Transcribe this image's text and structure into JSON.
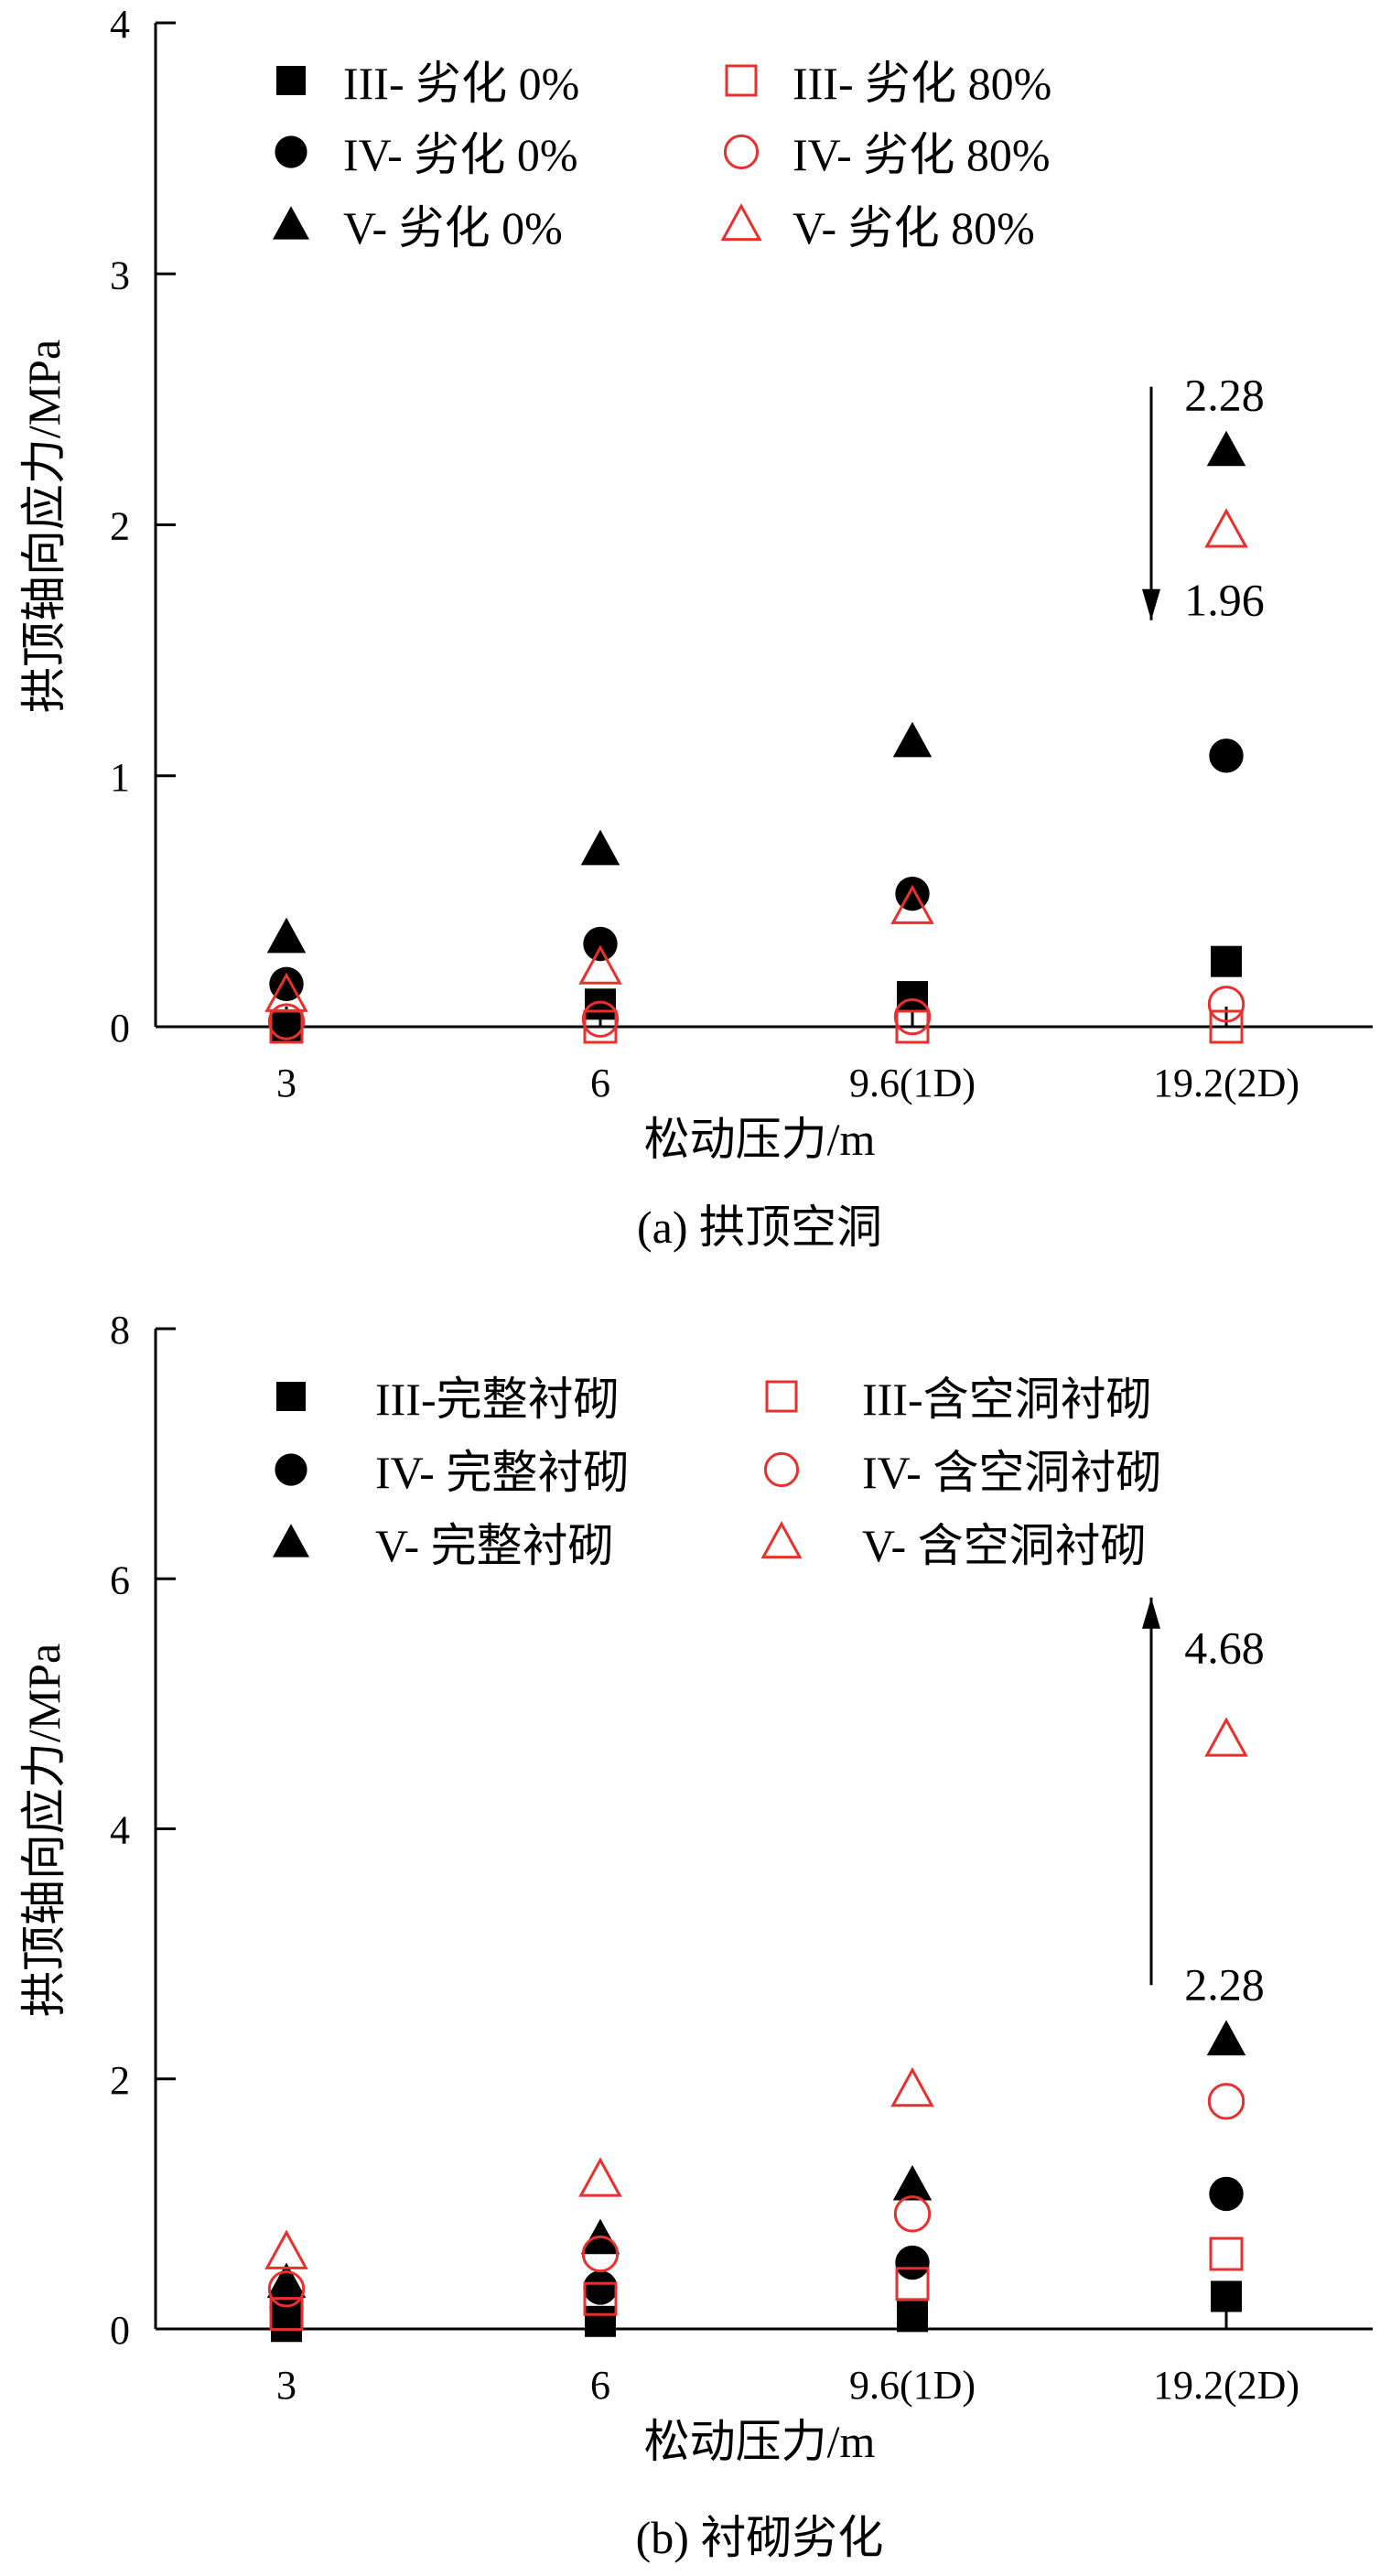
{
  "colors": {
    "black": "#000000",
    "red": "#e8302e"
  },
  "chart_data": [
    {
      "type": "scatter",
      "caption": "(a) 拱顶空洞",
      "xlabel": "松动压力/m",
      "ylabel": "拱顶轴向应力/MPa",
      "categories": [
        "3",
        "6",
        "9.6(1D)",
        "19.2(2D)"
      ],
      "ylim": [
        0,
        4
      ],
      "yticks": [
        "0",
        "1",
        "2",
        "3",
        "4"
      ],
      "legend_position": "top",
      "series": [
        {
          "name": "III- 劣化 0%",
          "marker": "square-filled",
          "color": "#000000",
          "values": [
            0.0,
            0.09,
            0.12,
            0.26
          ]
        },
        {
          "name": "IV- 劣化 0%",
          "marker": "circle-filled",
          "color": "#000000",
          "values": [
            0.17,
            0.33,
            0.53,
            1.08
          ]
        },
        {
          "name": "V- 劣化 0%",
          "marker": "triangle-filled",
          "color": "#000000",
          "values": [
            0.34,
            0.69,
            1.12,
            2.28
          ]
        },
        {
          "name": "III- 劣化 80%",
          "marker": "square-open",
          "color": "#e8302e",
          "values": [
            0.0,
            0.0,
            0.0,
            0.0
          ]
        },
        {
          "name": "IV- 劣化 80%",
          "marker": "circle-open",
          "color": "#e8302e",
          "values": [
            0.02,
            0.03,
            0.04,
            0.09
          ]
        },
        {
          "name": "V- 劣化 80%",
          "marker": "triangle-open",
          "color": "#e8302e",
          "values": [
            0.11,
            0.22,
            0.46,
            1.96
          ]
        }
      ],
      "annotations": [
        {
          "text": "2.28",
          "category": "19.2(2D)",
          "value": 2.28
        },
        {
          "text": "1.96",
          "category": "19.2(2D)",
          "value": 1.96
        }
      ],
      "arrow": {
        "from": 2.55,
        "to": 1.62,
        "direction": "down"
      }
    },
    {
      "type": "scatter",
      "caption": "(b) 衬砌劣化",
      "xlabel": "松动压力/m",
      "ylabel": "拱顶轴向应力/MPa",
      "categories": [
        "3",
        "6",
        "9.6(1D)",
        "19.2(2D)"
      ],
      "ylim": [
        0,
        8
      ],
      "yticks": [
        "0",
        "2",
        "4",
        "6",
        "8"
      ],
      "legend_position": "top",
      "series": [
        {
          "name": "III-完整衬砌",
          "marker": "square-filled",
          "color": "#000000",
          "values": [
            0.02,
            0.06,
            0.1,
            0.26
          ]
        },
        {
          "name": "IV- 完整衬砌",
          "marker": "circle-filled",
          "color": "#000000",
          "values": [
            0.17,
            0.33,
            0.53,
            1.08
          ]
        },
        {
          "name": "V- 完整衬砌",
          "marker": "triangle-filled",
          "color": "#000000",
          "values": [
            0.34,
            0.69,
            1.12,
            2.28
          ]
        },
        {
          "name": "III-含空洞衬砌",
          "marker": "square-open",
          "color": "#e8302e",
          "values": [
            0.12,
            0.24,
            0.36,
            0.6
          ]
        },
        {
          "name": "IV- 含空洞衬砌",
          "marker": "circle-open",
          "color": "#e8302e",
          "values": [
            0.32,
            0.6,
            0.92,
            1.82
          ]
        },
        {
          "name": "V- 含空洞衬砌",
          "marker": "triangle-open",
          "color": "#e8302e",
          "values": [
            0.58,
            1.16,
            1.88,
            4.68
          ]
        }
      ],
      "annotations": [
        {
          "text": "4.68",
          "category": "19.2(2D)",
          "value": 4.68
        },
        {
          "text": "2.28",
          "category": "19.2(2D)",
          "value": 2.28
        }
      ],
      "arrow": {
        "from": 2.75,
        "to": 5.85,
        "direction": "up"
      }
    }
  ]
}
